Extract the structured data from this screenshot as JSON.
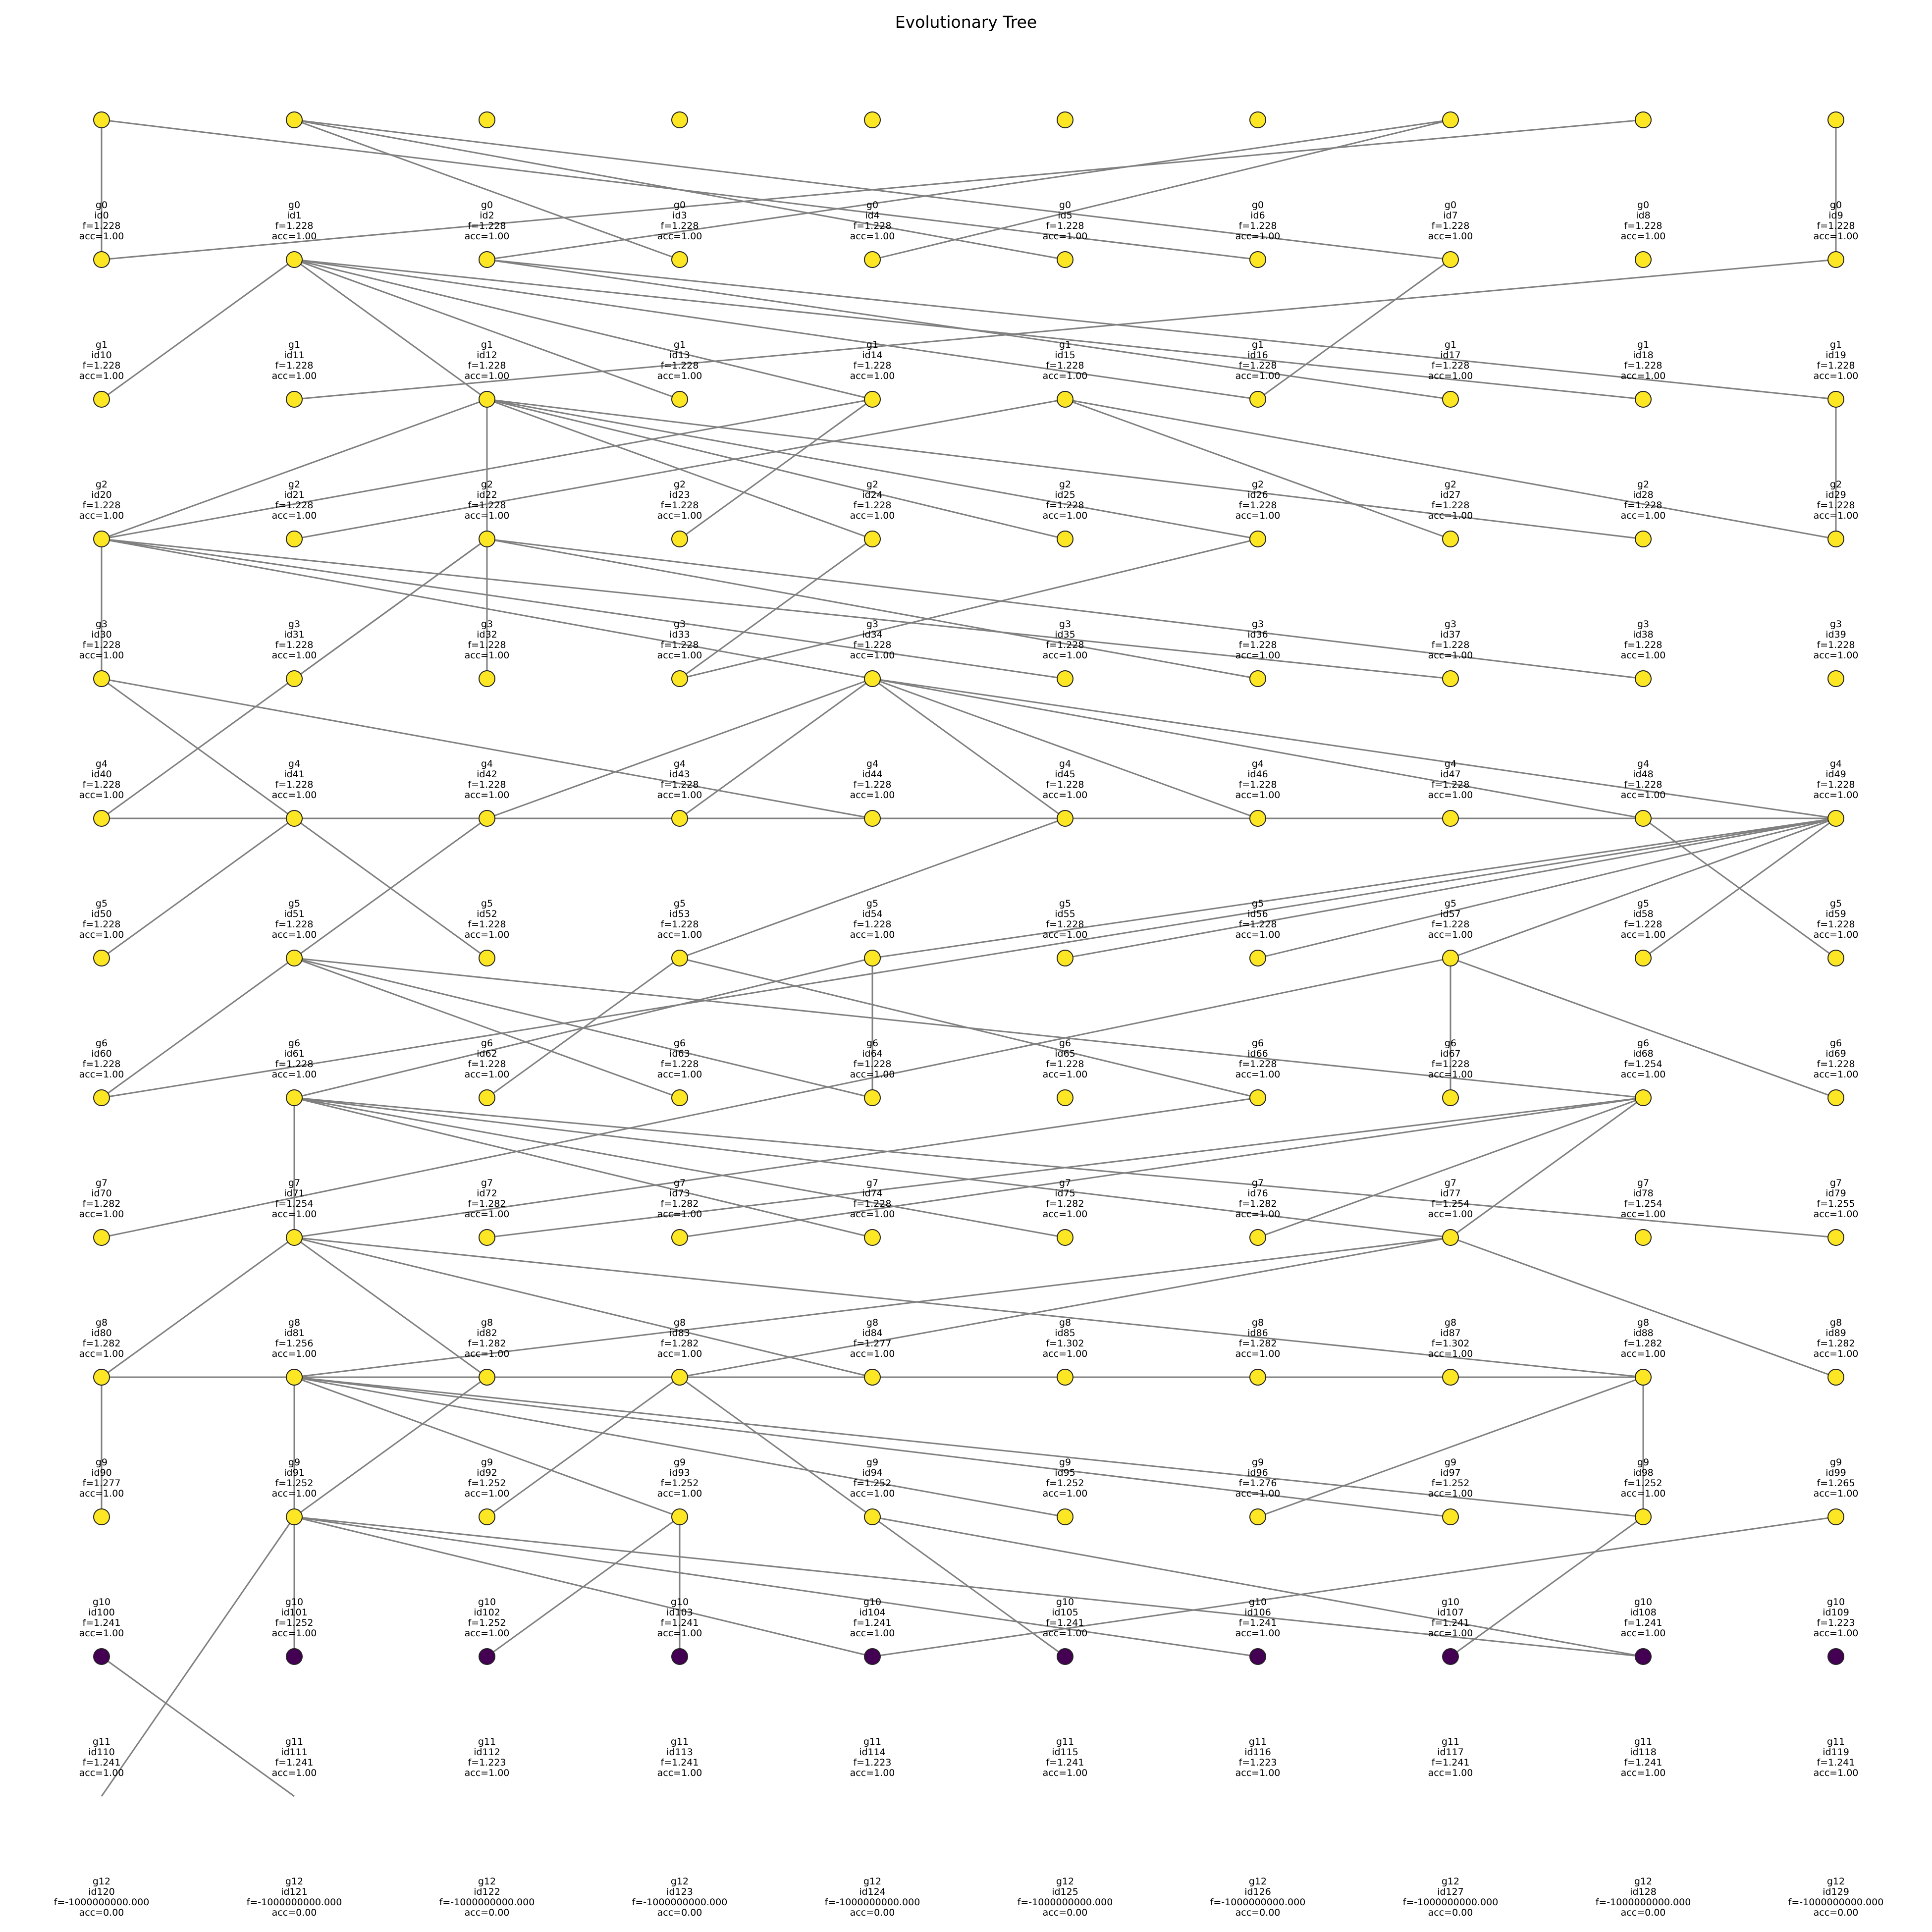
{
  "title": "Evolutionary Tree",
  "colors": {
    "yellow": "#fde725",
    "purple": "#440154",
    "edge": "#808080"
  },
  "generations": [
    {
      "gen": "g0",
      "fill": "yellow",
      "nodes": [
        {
          "id": "id0",
          "f": "f=1.228",
          "acc": "acc=1.00"
        },
        {
          "id": "id1",
          "f": "f=1.228",
          "acc": "acc=1.00"
        },
        {
          "id": "id2",
          "f": "f=1.228",
          "acc": "acc=1.00"
        },
        {
          "id": "id3",
          "f": "f=1.228",
          "acc": "acc=1.00"
        },
        {
          "id": "id4",
          "f": "f=1.228",
          "acc": "acc=1.00"
        },
        {
          "id": "id5",
          "f": "f=1.228",
          "acc": "acc=1.00"
        },
        {
          "id": "id6",
          "f": "f=1.228",
          "acc": "acc=1.00"
        },
        {
          "id": "id7",
          "f": "f=1.228",
          "acc": "acc=1.00"
        },
        {
          "id": "id8",
          "f": "f=1.228",
          "acc": "acc=1.00"
        },
        {
          "id": "id9",
          "f": "f=1.228",
          "acc": "acc=1.00"
        }
      ]
    },
    {
      "gen": "g1",
      "fill": "yellow",
      "nodes": [
        {
          "id": "id10",
          "f": "f=1.228",
          "acc": "acc=1.00"
        },
        {
          "id": "id11",
          "f": "f=1.228",
          "acc": "acc=1.00"
        },
        {
          "id": "id12",
          "f": "f=1.228",
          "acc": "acc=1.00"
        },
        {
          "id": "id13",
          "f": "f=1.228",
          "acc": "acc=1.00"
        },
        {
          "id": "id14",
          "f": "f=1.228",
          "acc": "acc=1.00"
        },
        {
          "id": "id15",
          "f": "f=1.228",
          "acc": "acc=1.00"
        },
        {
          "id": "id16",
          "f": "f=1.228",
          "acc": "acc=1.00"
        },
        {
          "id": "id17",
          "f": "f=1.228",
          "acc": "acc=1.00"
        },
        {
          "id": "id18",
          "f": "f=1.228",
          "acc": "acc=1.00"
        },
        {
          "id": "id19",
          "f": "f=1.228",
          "acc": "acc=1.00"
        }
      ]
    },
    {
      "gen": "g2",
      "fill": "yellow",
      "nodes": [
        {
          "id": "id20",
          "f": "f=1.228",
          "acc": "acc=1.00"
        },
        {
          "id": "id21",
          "f": "f=1.228",
          "acc": "acc=1.00"
        },
        {
          "id": "id22",
          "f": "f=1.228",
          "acc": "acc=1.00"
        },
        {
          "id": "id23",
          "f": "f=1.228",
          "acc": "acc=1.00"
        },
        {
          "id": "id24",
          "f": "f=1.228",
          "acc": "acc=1.00"
        },
        {
          "id": "id25",
          "f": "f=1.228",
          "acc": "acc=1.00"
        },
        {
          "id": "id26",
          "f": "f=1.228",
          "acc": "acc=1.00"
        },
        {
          "id": "id27",
          "f": "f=1.228",
          "acc": "acc=1.00"
        },
        {
          "id": "id28",
          "f": "f=1.228",
          "acc": "acc=1.00"
        },
        {
          "id": "id29",
          "f": "f=1.228",
          "acc": "acc=1.00"
        }
      ]
    },
    {
      "gen": "g3",
      "fill": "yellow",
      "nodes": [
        {
          "id": "id30",
          "f": "f=1.228",
          "acc": "acc=1.00"
        },
        {
          "id": "id31",
          "f": "f=1.228",
          "acc": "acc=1.00"
        },
        {
          "id": "id32",
          "f": "f=1.228",
          "acc": "acc=1.00"
        },
        {
          "id": "id33",
          "f": "f=1.228",
          "acc": "acc=1.00"
        },
        {
          "id": "id34",
          "f": "f=1.228",
          "acc": "acc=1.00"
        },
        {
          "id": "id35",
          "f": "f=1.228",
          "acc": "acc=1.00"
        },
        {
          "id": "id36",
          "f": "f=1.228",
          "acc": "acc=1.00"
        },
        {
          "id": "id37",
          "f": "f=1.228",
          "acc": "acc=1.00"
        },
        {
          "id": "id38",
          "f": "f=1.228",
          "acc": "acc=1.00"
        },
        {
          "id": "id39",
          "f": "f=1.228",
          "acc": "acc=1.00"
        }
      ]
    },
    {
      "gen": "g4",
      "fill": "yellow",
      "nodes": [
        {
          "id": "id40",
          "f": "f=1.228",
          "acc": "acc=1.00"
        },
        {
          "id": "id41",
          "f": "f=1.228",
          "acc": "acc=1.00"
        },
        {
          "id": "id42",
          "f": "f=1.228",
          "acc": "acc=1.00"
        },
        {
          "id": "id43",
          "f": "f=1.228",
          "acc": "acc=1.00"
        },
        {
          "id": "id44",
          "f": "f=1.228",
          "acc": "acc=1.00"
        },
        {
          "id": "id45",
          "f": "f=1.228",
          "acc": "acc=1.00"
        },
        {
          "id": "id46",
          "f": "f=1.228",
          "acc": "acc=1.00"
        },
        {
          "id": "id47",
          "f": "f=1.228",
          "acc": "acc=1.00"
        },
        {
          "id": "id48",
          "f": "f=1.228",
          "acc": "acc=1.00"
        },
        {
          "id": "id49",
          "f": "f=1.228",
          "acc": "acc=1.00"
        }
      ]
    },
    {
      "gen": "g5",
      "fill": "yellow",
      "nodes": [
        {
          "id": "id50",
          "f": "f=1.228",
          "acc": "acc=1.00"
        },
        {
          "id": "id51",
          "f": "f=1.228",
          "acc": "acc=1.00"
        },
        {
          "id": "id52",
          "f": "f=1.228",
          "acc": "acc=1.00"
        },
        {
          "id": "id53",
          "f": "f=1.228",
          "acc": "acc=1.00"
        },
        {
          "id": "id54",
          "f": "f=1.228",
          "acc": "acc=1.00"
        },
        {
          "id": "id55",
          "f": "f=1.228",
          "acc": "acc=1.00"
        },
        {
          "id": "id56",
          "f": "f=1.228",
          "acc": "acc=1.00"
        },
        {
          "id": "id57",
          "f": "f=1.228",
          "acc": "acc=1.00"
        },
        {
          "id": "id58",
          "f": "f=1.228",
          "acc": "acc=1.00"
        },
        {
          "id": "id59",
          "f": "f=1.228",
          "acc": "acc=1.00"
        }
      ]
    },
    {
      "gen": "g6",
      "fill": "yellow",
      "nodes": [
        {
          "id": "id60",
          "f": "f=1.228",
          "acc": "acc=1.00"
        },
        {
          "id": "id61",
          "f": "f=1.228",
          "acc": "acc=1.00"
        },
        {
          "id": "id62",
          "f": "f=1.228",
          "acc": "acc=1.00"
        },
        {
          "id": "id63",
          "f": "f=1.228",
          "acc": "acc=1.00"
        },
        {
          "id": "id64",
          "f": "f=1.228",
          "acc": "acc=1.00"
        },
        {
          "id": "id65",
          "f": "f=1.228",
          "acc": "acc=1.00"
        },
        {
          "id": "id66",
          "f": "f=1.228",
          "acc": "acc=1.00"
        },
        {
          "id": "id67",
          "f": "f=1.228",
          "acc": "acc=1.00"
        },
        {
          "id": "id68",
          "f": "f=1.254",
          "acc": "acc=1.00"
        },
        {
          "id": "id69",
          "f": "f=1.228",
          "acc": "acc=1.00"
        }
      ]
    },
    {
      "gen": "g7",
      "fill": "yellow",
      "nodes": [
        {
          "id": "id70",
          "f": "f=1.282",
          "acc": "acc=1.00"
        },
        {
          "id": "id71",
          "f": "f=1.254",
          "acc": "acc=1.00"
        },
        {
          "id": "id72",
          "f": "f=1.282",
          "acc": "acc=1.00"
        },
        {
          "id": "id73",
          "f": "f=1.282",
          "acc": "acc=1.00"
        },
        {
          "id": "id74",
          "f": "f=1.228",
          "acc": "acc=1.00"
        },
        {
          "id": "id75",
          "f": "f=1.282",
          "acc": "acc=1.00"
        },
        {
          "id": "id76",
          "f": "f=1.282",
          "acc": "acc=1.00"
        },
        {
          "id": "id77",
          "f": "f=1.254",
          "acc": "acc=1.00"
        },
        {
          "id": "id78",
          "f": "f=1.254",
          "acc": "acc=1.00"
        },
        {
          "id": "id79",
          "f": "f=1.255",
          "acc": "acc=1.00"
        }
      ]
    },
    {
      "gen": "g8",
      "fill": "yellow",
      "nodes": [
        {
          "id": "id80",
          "f": "f=1.282",
          "acc": "acc=1.00"
        },
        {
          "id": "id81",
          "f": "f=1.256",
          "acc": "acc=1.00"
        },
        {
          "id": "id82",
          "f": "f=1.282",
          "acc": "acc=1.00"
        },
        {
          "id": "id83",
          "f": "f=1.282",
          "acc": "acc=1.00"
        },
        {
          "id": "id84",
          "f": "f=1.277",
          "acc": "acc=1.00"
        },
        {
          "id": "id85",
          "f": "f=1.302",
          "acc": "acc=1.00"
        },
        {
          "id": "id86",
          "f": "f=1.282",
          "acc": "acc=1.00"
        },
        {
          "id": "id87",
          "f": "f=1.302",
          "acc": "acc=1.00"
        },
        {
          "id": "id88",
          "f": "f=1.282",
          "acc": "acc=1.00"
        },
        {
          "id": "id89",
          "f": "f=1.282",
          "acc": "acc=1.00"
        }
      ]
    },
    {
      "gen": "g9",
      "fill": "yellow",
      "nodes": [
        {
          "id": "id90",
          "f": "f=1.277",
          "acc": "acc=1.00"
        },
        {
          "id": "id91",
          "f": "f=1.252",
          "acc": "acc=1.00"
        },
        {
          "id": "id92",
          "f": "f=1.252",
          "acc": "acc=1.00"
        },
        {
          "id": "id93",
          "f": "f=1.252",
          "acc": "acc=1.00"
        },
        {
          "id": "id94",
          "f": "f=1.252",
          "acc": "acc=1.00"
        },
        {
          "id": "id95",
          "f": "f=1.252",
          "acc": "acc=1.00"
        },
        {
          "id": "id96",
          "f": "f=1.276",
          "acc": "acc=1.00"
        },
        {
          "id": "id97",
          "f": "f=1.252",
          "acc": "acc=1.00"
        },
        {
          "id": "id98",
          "f": "f=1.252",
          "acc": "acc=1.00"
        },
        {
          "id": "id99",
          "f": "f=1.265",
          "acc": "acc=1.00"
        }
      ]
    },
    {
      "gen": "g10",
      "fill": "yellow",
      "nodes": [
        {
          "id": "id100",
          "f": "f=1.241",
          "acc": "acc=1.00"
        },
        {
          "id": "id101",
          "f": "f=1.252",
          "acc": "acc=1.00"
        },
        {
          "id": "id102",
          "f": "f=1.252",
          "acc": "acc=1.00"
        },
        {
          "id": "id103",
          "f": "f=1.241",
          "acc": "acc=1.00"
        },
        {
          "id": "id104",
          "f": "f=1.241",
          "acc": "acc=1.00"
        },
        {
          "id": "id105",
          "f": "f=1.241",
          "acc": "acc=1.00"
        },
        {
          "id": "id106",
          "f": "f=1.241",
          "acc": "acc=1.00"
        },
        {
          "id": "id107",
          "f": "f=1.241",
          "acc": "acc=1.00"
        },
        {
          "id": "id108",
          "f": "f=1.241",
          "acc": "acc=1.00"
        },
        {
          "id": "id109",
          "f": "f=1.223",
          "acc": "acc=1.00"
        }
      ]
    },
    {
      "gen": "g11",
      "fill": "purple",
      "nodes": [
        {
          "id": "id110",
          "f": "f=1.241",
          "acc": "acc=1.00"
        },
        {
          "id": "id111",
          "f": "f=1.241",
          "acc": "acc=1.00"
        },
        {
          "id": "id112",
          "f": "f=1.223",
          "acc": "acc=1.00"
        },
        {
          "id": "id113",
          "f": "f=1.241",
          "acc": "acc=1.00"
        },
        {
          "id": "id114",
          "f": "f=1.223",
          "acc": "acc=1.00"
        },
        {
          "id": "id115",
          "f": "f=1.241",
          "acc": "acc=1.00"
        },
        {
          "id": "id116",
          "f": "f=1.223",
          "acc": "acc=1.00"
        },
        {
          "id": "id117",
          "f": "f=1.241",
          "acc": "acc=1.00"
        },
        {
          "id": "id118",
          "f": "f=1.241",
          "acc": "acc=1.00"
        },
        {
          "id": "id119",
          "f": "f=1.241",
          "acc": "acc=1.00"
        }
      ]
    },
    {
      "gen": "g12",
      "fill": "none",
      "nodes": [
        {
          "id": "id120",
          "f": "f=-1000000000.000",
          "acc": "acc=0.00"
        },
        {
          "id": "id121",
          "f": "f=-1000000000.000",
          "acc": "acc=0.00"
        },
        {
          "id": "id122",
          "f": "f=-1000000000.000",
          "acc": "acc=0.00"
        },
        {
          "id": "id123",
          "f": "f=-1000000000.000",
          "acc": "acc=0.00"
        },
        {
          "id": "id124",
          "f": "f=-1000000000.000",
          "acc": "acc=0.00"
        },
        {
          "id": "id125",
          "f": "f=-1000000000.000",
          "acc": "acc=0.00"
        },
        {
          "id": "id126",
          "f": "f=-1000000000.000",
          "acc": "acc=0.00"
        },
        {
          "id": "id127",
          "f": "f=-1000000000.000",
          "acc": "acc=0.00"
        },
        {
          "id": "id128",
          "f": "f=-1000000000.000",
          "acc": "acc=0.00"
        },
        {
          "id": "id129",
          "f": "f=-1000000000.000",
          "acc": "acc=0.00"
        }
      ]
    }
  ],
  "edges": [
    [
      "id0",
      "id10"
    ],
    [
      "id0",
      "id16"
    ],
    [
      "id1",
      "id13"
    ],
    [
      "id1",
      "id15"
    ],
    [
      "id1",
      "id17"
    ],
    [
      "id7",
      "id12"
    ],
    [
      "id7",
      "id14"
    ],
    [
      "id8",
      "id10"
    ],
    [
      "id9",
      "id19"
    ],
    [
      "id11",
      "id22"
    ],
    [
      "id11",
      "id23"
    ],
    [
      "id11",
      "id26"
    ],
    [
      "id11",
      "id28"
    ],
    [
      "id11",
      "id20"
    ],
    [
      "id11",
      "id24"
    ],
    [
      "id12",
      "id27"
    ],
    [
      "id12",
      "id29"
    ],
    [
      "id19",
      "id21"
    ],
    [
      "id17",
      "id26"
    ],
    [
      "id22",
      "id30"
    ],
    [
      "id22",
      "id32"
    ],
    [
      "id22",
      "id34"
    ],
    [
      "id22",
      "id35"
    ],
    [
      "id22",
      "id36"
    ],
    [
      "id22",
      "id38"
    ],
    [
      "id24",
      "id30"
    ],
    [
      "id24",
      "id33"
    ],
    [
      "id25",
      "id31"
    ],
    [
      "id25",
      "id37"
    ],
    [
      "id25",
      "id39"
    ],
    [
      "id29",
      "id39"
    ],
    [
      "id30",
      "id40"
    ],
    [
      "id30",
      "id44"
    ],
    [
      "id30",
      "id45"
    ],
    [
      "id30",
      "id47"
    ],
    [
      "id32",
      "id41"
    ],
    [
      "id32",
      "id42"
    ],
    [
      "id32",
      "id46"
    ],
    [
      "id32",
      "id48"
    ],
    [
      "id32",
      "id50"
    ],
    [
      "id34",
      "id43"
    ],
    [
      "id36",
      "id43"
    ],
    [
      "id40",
      "id51"
    ],
    [
      "id40",
      "id54"
    ],
    [
      "id44",
      "id52"
    ],
    [
      "id44",
      "id53"
    ],
    [
      "id44",
      "id56"
    ],
    [
      "id44",
      "id58"
    ],
    [
      "id44",
      "id59"
    ],
    [
      "id44",
      "id55"
    ],
    [
      "id50",
      "id59"
    ],
    [
      "id50",
      "id57"
    ],
    [
      "id50",
      "id52"
    ],
    [
      "id51",
      "id60"
    ],
    [
      "id51",
      "id62"
    ],
    [
      "id52",
      "id61"
    ],
    [
      "id55",
      "id63"
    ],
    [
      "id59",
      "id64"
    ],
    [
      "id59",
      "id65"
    ],
    [
      "id59",
      "id66"
    ],
    [
      "id59",
      "id68"
    ],
    [
      "id59",
      "id70"
    ],
    [
      "id59",
      "id67"
    ],
    [
      "id58",
      "id69"
    ],
    [
      "id61",
      "id70"
    ],
    [
      "id61",
      "id73"
    ],
    [
      "id61",
      "id74"
    ],
    [
      "id61",
      "id78"
    ],
    [
      "id63",
      "id72"
    ],
    [
      "id63",
      "id76"
    ],
    [
      "id64",
      "id71"
    ],
    [
      "id64",
      "id74"
    ],
    [
      "id67",
      "id77"
    ],
    [
      "id67",
      "id79"
    ],
    [
      "id67",
      "id80"
    ],
    [
      "id71",
      "id81"
    ],
    [
      "id71",
      "id84"
    ],
    [
      "id71",
      "id85"
    ],
    [
      "id71",
      "id87"
    ],
    [
      "id71",
      "id89"
    ],
    [
      "id76",
      "id81"
    ],
    [
      "id78",
      "id82"
    ],
    [
      "id78",
      "id83"
    ],
    [
      "id78",
      "id86"
    ],
    [
      "id78",
      "id87"
    ],
    [
      "id81",
      "id90"
    ],
    [
      "id81",
      "id92"
    ],
    [
      "id81",
      "id94"
    ],
    [
      "id81",
      "id98"
    ],
    [
      "id87",
      "id91"
    ],
    [
      "id87",
      "id93"
    ],
    [
      "id87",
      "id99"
    ],
    [
      "id90",
      "id96"
    ],
    [
      "id90",
      "id97"
    ],
    [
      "id90",
      "id98"
    ],
    [
      "id90",
      "id100"
    ],
    [
      "id91",
      "id101"
    ],
    [
      "id91",
      "id103"
    ],
    [
      "id91",
      "id105"
    ],
    [
      "id91",
      "id107"
    ],
    [
      "id91",
      "id108"
    ],
    [
      "id92",
      "id101"
    ],
    [
      "id93",
      "id102"
    ],
    [
      "id93",
      "id104"
    ],
    [
      "id98",
      "id106"
    ],
    [
      "id98",
      "id108"
    ],
    [
      "id101",
      "id111"
    ],
    [
      "id101",
      "id114"
    ],
    [
      "id101",
      "id116"
    ],
    [
      "id101",
      "id118"
    ],
    [
      "id101",
      "id120"
    ],
    [
      "id103",
      "id112"
    ],
    [
      "id103",
      "id113"
    ],
    [
      "id104",
      "id115"
    ],
    [
      "id104",
      "id118"
    ],
    [
      "id108",
      "id117"
    ],
    [
      "id109",
      "id114"
    ],
    [
      "id110",
      "id121"
    ]
  ]
}
